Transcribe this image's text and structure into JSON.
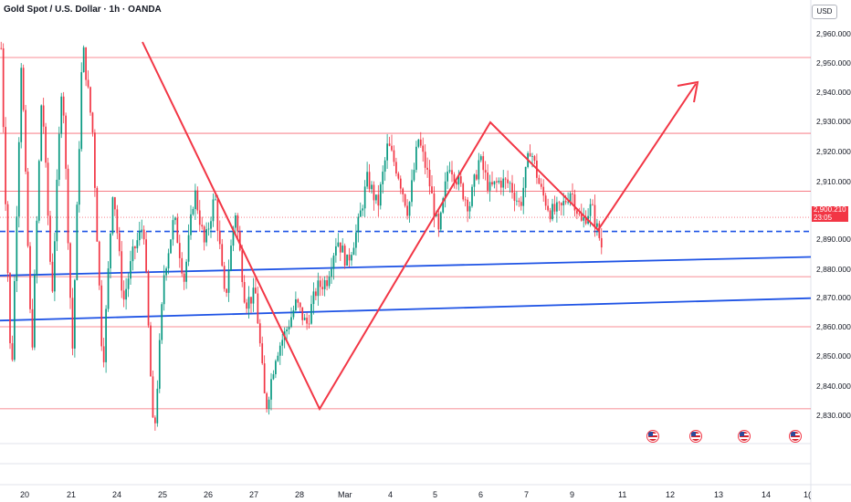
{
  "header": {
    "title": "Gold Spot / U.S. Dollar · 1h · OANDA",
    "currency": "USD"
  },
  "price_tag": {
    "price": "2,900.210",
    "countdown": "23:05"
  },
  "colors": {
    "up": "#089981",
    "down": "#f23645",
    "level_line": "#f23645",
    "trend_line": "#1e53e5",
    "pattern": "#f23645",
    "dashed_level": "#1e53e5"
  },
  "chart_data": {
    "type": "candlestick",
    "symbol": "XAUUSD",
    "timeframe": "1h",
    "y_axis": {
      "ticks": [
        "2,830.000",
        "2,840.000",
        "2,850.000",
        "2,860.000",
        "2,870.000",
        "2,880.000",
        "2,890.000",
        "2,900.000",
        "2,910.000",
        "2,920.000",
        "2,930.000",
        "2,940.000",
        "2,950.000",
        "2,960.000"
      ],
      "ylim": [
        2826,
        2968
      ]
    },
    "x_axis": {
      "labels": [
        "20",
        "21",
        "24",
        "25",
        "26",
        "27",
        "28",
        "Mar",
        "4",
        "5",
        "6",
        "7",
        "9",
        "11",
        "12",
        "13",
        "14",
        "1("
      ]
    },
    "horizontal_levels": [
      2832.5,
      2861.5,
      2879.2,
      2909.4,
      2929.9,
      2956.7
    ],
    "dashed_level": 2895.2,
    "trend_lines": [
      {
        "y_start": 2879.6,
        "y_end": 2886.2
      },
      {
        "y_start": 2863.7,
        "y_end": 2871.6
      }
    ],
    "price_path": [
      2960,
      2840,
      2958,
      2850,
      2945,
      2872,
      2952,
      2852,
      2962,
      2930,
      2846,
      2912,
      2870,
      2888,
      2898,
      2820,
      2880,
      2900,
      2878,
      2910,
      2890,
      2908,
      2870,
      2903,
      2870,
      2873,
      2832,
      2852,
      2860,
      2870,
      2862,
      2875,
      2878,
      2893,
      2884,
      2896,
      2914,
      2904,
      2926,
      2916,
      2902,
      2928,
      2914,
      2894,
      2920,
      2912,
      2904,
      2921,
      2910,
      2913,
      2912,
      2904,
      2925,
      2910,
      2902,
      2903,
      2910,
      2898,
      2904,
      2890
    ],
    "drawn_pattern": [
      {
        "label": "",
        "points": [
          [
            0.0,
            2957
          ],
          [
            1.0,
            2833
          ],
          [
            2.0,
            2930
          ],
          [
            3.0,
            2896
          ],
          [
            4.0,
            2944
          ]
        ]
      }
    ],
    "event_markers": 4,
    "last_price": 2900.21
  }
}
